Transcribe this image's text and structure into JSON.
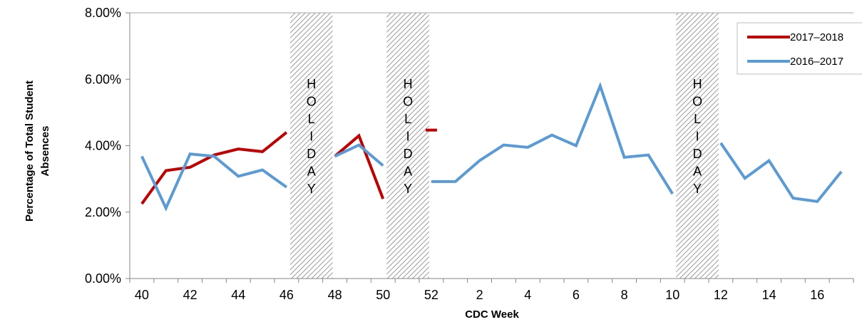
{
  "chart_data": {
    "type": "line",
    "xlabel": "CDC Week",
    "ylabel": "Percentage of Total Student Absences",
    "ylim": [
      0,
      8
    ],
    "y_ticks": [
      "0.00%",
      "2.00%",
      "4.00%",
      "6.00%",
      "8.00%"
    ],
    "categories": [
      "40",
      "41",
      "42",
      "43",
      "44",
      "45",
      "46",
      "47",
      "48",
      "49",
      "50",
      "51",
      "52",
      "1",
      "2",
      "3",
      "4",
      "5",
      "6",
      "7",
      "8",
      "9",
      "10",
      "11",
      "12",
      "13",
      "14",
      "15",
      "16",
      "17"
    ],
    "x_tick_labels": [
      "40",
      "42",
      "44",
      "46",
      "48",
      "50",
      "52",
      "2",
      "4",
      "6",
      "8",
      "10",
      "12",
      "14",
      "16"
    ],
    "holiday_label": "HOLIDAY",
    "holiday_letters": [
      "H",
      "O",
      "L",
      "I",
      "D",
      "A",
      "Y"
    ],
    "holidays": [
      {
        "from": "46",
        "to": "48"
      },
      {
        "from": "50",
        "to": "52"
      },
      {
        "from": "10",
        "to": "12"
      }
    ],
    "legend_position": "top-right",
    "series": [
      {
        "name": "2017–2018",
        "color": "#C00000",
        "values": [
          2.25,
          3.25,
          3.35,
          3.72,
          3.9,
          3.82,
          4.4,
          null,
          3.68,
          4.3,
          2.4,
          null,
          4.47,
          null,
          null,
          null,
          null,
          null,
          null,
          null,
          null,
          null,
          null,
          null,
          null,
          null,
          null,
          null,
          null,
          null
        ]
      },
      {
        "name": "2016–2017",
        "color": "#5B9BD5",
        "values": [
          3.68,
          2.12,
          3.75,
          3.68,
          3.08,
          3.27,
          2.75,
          null,
          3.68,
          4.02,
          3.4,
          null,
          2.92,
          2.92,
          3.55,
          4.02,
          3.95,
          4.32,
          4.0,
          5.8,
          3.65,
          3.72,
          2.55,
          null,
          4.08,
          3.02,
          3.55,
          2.42,
          2.32,
          3.22
        ]
      }
    ]
  }
}
